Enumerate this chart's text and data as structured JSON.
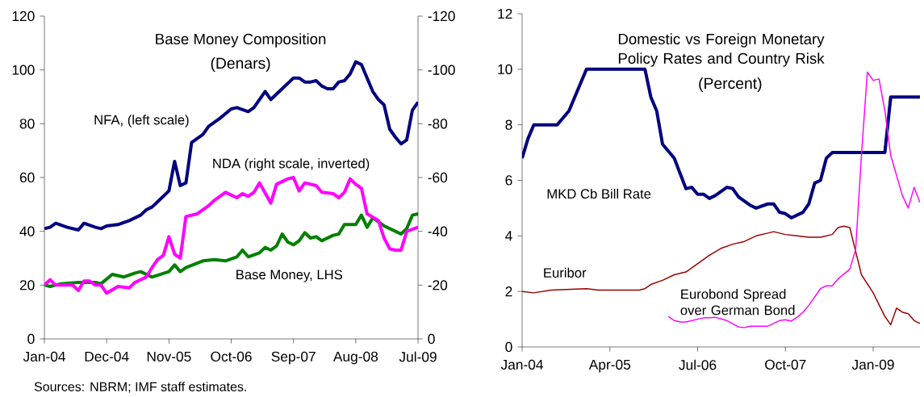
{
  "chart_data": [
    {
      "type": "line",
      "title": "Base Money Composition",
      "subtitle": "(Denars)",
      "xlim": [
        "2004-01",
        "2009-07"
      ],
      "xticks": [
        {
          "value": "2004-01",
          "label": "Jan-04"
        },
        {
          "value": "2004-12",
          "label": "Dec-04"
        },
        {
          "value": "2005-11",
          "label": "Nov-05"
        },
        {
          "value": "2006-10",
          "label": "Oct-06"
        },
        {
          "value": "2007-09",
          "label": "Sep-07"
        },
        {
          "value": "2008-08",
          "label": "Aug-08"
        },
        {
          "value": "2009-07",
          "label": "Jul-09"
        }
      ],
      "ylim": [
        0,
        120
      ],
      "yticks": [
        0,
        20,
        40,
        60,
        80,
        100,
        120
      ],
      "y2lim": [
        0,
        -120
      ],
      "y2ticks": [
        0,
        -20,
        -40,
        -60,
        -80,
        -100,
        -120
      ],
      "series": [
        {
          "name": "NFA, (left scale)",
          "color": "#000080",
          "x": [
            "2004-01",
            "2004-02",
            "2004-03",
            "2004-05",
            "2004-07",
            "2004-08",
            "2004-10",
            "2004-11",
            "2004-12",
            "2005-02",
            "2005-04",
            "2005-06",
            "2005-07",
            "2005-08",
            "2005-09",
            "2005-11",
            "2005-12",
            "2006-01",
            "2006-02",
            "2006-03",
            "2006-05",
            "2006-06",
            "2006-08",
            "2006-10",
            "2006-11",
            "2007-01",
            "2007-02",
            "2007-03",
            "2007-04",
            "2007-05",
            "2007-07",
            "2007-09",
            "2007-10",
            "2007-11",
            "2007-12",
            "2008-01",
            "2008-02",
            "2008-03",
            "2008-04",
            "2008-05",
            "2008-06",
            "2008-07",
            "2008-08",
            "2008-09",
            "2008-10",
            "2008-11",
            "2008-12",
            "2009-01",
            "2009-02",
            "2009-03",
            "2009-04",
            "2009-05",
            "2009-06",
            "2009-07"
          ],
          "values": [
            41,
            41.5,
            43,
            41.5,
            40.5,
            43,
            41.5,
            41,
            42,
            42.5,
            44,
            46,
            48,
            49,
            51,
            55,
            66,
            57,
            58,
            73,
            76,
            79,
            82,
            85.5,
            86,
            84.5,
            86,
            89,
            92,
            89,
            93,
            97,
            97,
            95.5,
            95.5,
            96,
            94,
            93,
            93,
            95.5,
            96,
            98.5,
            103,
            102,
            97,
            92,
            89,
            87,
            78,
            75,
            72.5,
            74,
            85,
            88
          ]
        },
        {
          "name": "Base Money, LHS",
          "color": "#008000",
          "x": [
            "2004-01",
            "2004-02",
            "2004-04",
            "2004-07",
            "2004-10",
            "2004-11",
            "2005-01",
            "2005-03",
            "2005-05",
            "2005-06",
            "2005-08",
            "2005-11",
            "2005-12",
            "2006-01",
            "2006-02",
            "2006-05",
            "2006-07",
            "2006-09",
            "2006-11",
            "2006-12",
            "2007-01",
            "2007-03",
            "2007-04",
            "2007-05",
            "2007-06",
            "2007-07",
            "2007-08",
            "2007-09",
            "2007-10",
            "2007-11",
            "2007-12",
            "2008-01",
            "2008-02",
            "2008-04",
            "2008-05",
            "2008-06",
            "2008-08",
            "2008-09",
            "2008-10",
            "2008-11",
            "2009-01",
            "2009-03",
            "2009-04",
            "2009-05",
            "2009-06",
            "2009-07"
          ],
          "values": [
            20,
            19.5,
            20.5,
            21,
            21,
            20.5,
            24,
            23,
            24.5,
            25,
            23,
            25,
            27.5,
            25,
            26.5,
            29,
            29.5,
            29,
            30.5,
            33,
            30.5,
            32,
            34,
            33,
            34.5,
            39,
            36,
            35,
            36.5,
            39.5,
            37.5,
            38,
            36.5,
            38.5,
            39,
            42.5,
            42.5,
            46,
            41.5,
            45,
            42,
            40,
            39,
            41,
            46,
            46.5
          ]
        },
        {
          "name": "NDA (right scale, inverted)",
          "color": "#ff00ff",
          "axis": "y2",
          "x": [
            "2004-01",
            "2004-02",
            "2004-03",
            "2004-06",
            "2004-07",
            "2004-08",
            "2004-09",
            "2004-10",
            "2004-11",
            "2004-12",
            "2005-02",
            "2005-04",
            "2005-05",
            "2005-07",
            "2005-08",
            "2005-09",
            "2005-10",
            "2005-11",
            "2005-12",
            "2006-01",
            "2006-02",
            "2006-04",
            "2006-06",
            "2006-07",
            "2006-09",
            "2006-11",
            "2006-12",
            "2007-01",
            "2007-02",
            "2007-03",
            "2007-05",
            "2007-06",
            "2007-08",
            "2007-09",
            "2007-10",
            "2007-11",
            "2008-01",
            "2008-02",
            "2008-04",
            "2008-05",
            "2008-06",
            "2008-07",
            "2008-08",
            "2008-09",
            "2008-10",
            "2008-12",
            "2009-01",
            "2009-02",
            "2009-03",
            "2009-04",
            "2009-05",
            "2009-07"
          ],
          "values": [
            -20,
            -22,
            -20,
            -20,
            -18,
            -21.5,
            -21.5,
            -20,
            -20,
            -17,
            -19.5,
            -19,
            -21,
            -23,
            -26.5,
            -29.5,
            -31,
            -38,
            -31.5,
            -30,
            -45.5,
            -46.5,
            -49.5,
            -51.5,
            -54.5,
            -52.5,
            -54,
            -53,
            -54.5,
            -58,
            -50.5,
            -57.5,
            -59.5,
            -60,
            -55,
            -58,
            -57,
            -54.5,
            -54,
            -52.5,
            -54.5,
            -59.5,
            -57.5,
            -56,
            -46.5,
            -44,
            -37.5,
            -33.5,
            -33,
            -33,
            -40,
            -41.5
          ]
        }
      ],
      "annotations": [
        "Sources: NBRM; IMF staff estimates."
      ]
    },
    {
      "type": "line",
      "title": "Domestic vs Foreign Monetary Policy Rates and Country Risk",
      "subtitle": "(Percent)",
      "xlim": [
        "2004-01",
        "2009-09"
      ],
      "xticks": [
        {
          "value": "2004-01",
          "label": "Jan-04"
        },
        {
          "value": "2005-04",
          "label": "Apr-05"
        },
        {
          "value": "2006-07",
          "label": "Jul-06"
        },
        {
          "value": "2007-10",
          "label": "Oct-07"
        },
        {
          "value": "2009-01",
          "label": "Jan-09"
        }
      ],
      "ylim": [
        0,
        12
      ],
      "yticks": [
        0,
        2,
        4,
        6,
        8,
        10,
        12
      ],
      "series": [
        {
          "name": "MKD Cb Bill Rate",
          "color": "#000080",
          "x": [
            "2004-01",
            "2004-02",
            "2004-03",
            "2004-07",
            "2004-09",
            "2004-10",
            "2004-11",
            "2004-12",
            "2005-10",
            "2005-11",
            "2005-12",
            "2006-01",
            "2006-03",
            "2006-05",
            "2006-06",
            "2006-07",
            "2006-08",
            "2006-09",
            "2006-10",
            "2006-12",
            "2007-01",
            "2007-02",
            "2007-04",
            "2007-05",
            "2007-07",
            "2007-08",
            "2007-09",
            "2007-10",
            "2007-11",
            "2008-01",
            "2008-02",
            "2008-03",
            "2008-04",
            "2008-05",
            "2008-06",
            "2009-03",
            "2009-04",
            "2009-09"
          ],
          "values": [
            6.8,
            7.5,
            8,
            8,
            8.5,
            9,
            9.5,
            10,
            10,
            9,
            8.5,
            7.3,
            6.8,
            5.7,
            5.75,
            5.5,
            5.5,
            5.35,
            5.45,
            5.75,
            5.7,
            5.4,
            5.1,
            5,
            5.15,
            5.15,
            4.85,
            4.8,
            4.65,
            4.85,
            5.15,
            5.9,
            6,
            6.8,
            7,
            7,
            9,
            9
          ]
        },
        {
          "name": "Euribor",
          "color": "#990000",
          "x": [
            "2004-01",
            "2004-03",
            "2004-06",
            "2004-12",
            "2005-02",
            "2005-09",
            "2005-10",
            "2005-11",
            "2006-01",
            "2006-03",
            "2006-05",
            "2006-07",
            "2006-09",
            "2006-11",
            "2007-01",
            "2007-03",
            "2007-05",
            "2007-07",
            "2007-08",
            "2007-10",
            "2007-12",
            "2008-02",
            "2008-04",
            "2008-06",
            "2008-07",
            "2008-08",
            "2008-09",
            "2008-11",
            "2009-01",
            "2009-03",
            "2009-04",
            "2009-05",
            "2009-06",
            "2009-07",
            "2009-08",
            "2009-09"
          ],
          "values": [
            2,
            1.95,
            2.05,
            2.1,
            2.05,
            2.05,
            2.1,
            2.25,
            2.4,
            2.6,
            2.7,
            3,
            3.3,
            3.55,
            3.7,
            3.8,
            4,
            4.1,
            4.15,
            4.05,
            4,
            3.95,
            3.95,
            4.05,
            4.3,
            4.35,
            4.3,
            2.6,
            1.95,
            1.1,
            0.8,
            1.4,
            1.25,
            1.2,
            0.95,
            0.85
          ]
        },
        {
          "name": "Eurobond Spread over German Bond",
          "color": "#ff00ff",
          "x": [
            "2006-02",
            "2006-03",
            "2006-04",
            "2006-05",
            "2006-06",
            "2006-08",
            "2006-09",
            "2006-10",
            "2006-12",
            "2007-02",
            "2007-03",
            "2007-04",
            "2007-07",
            "2007-09",
            "2007-10",
            "2007-11",
            "2007-12",
            "2008-01",
            "2008-02",
            "2008-04",
            "2008-05",
            "2008-06",
            "2008-07",
            "2008-09",
            "2008-10",
            "2008-11",
            "2008-12",
            "2009-01",
            "2009-02",
            "2009-03",
            "2009-04",
            "2009-06",
            "2009-07",
            "2009-08",
            "2009-09"
          ],
          "values": [
            1.1,
            0.95,
            0.9,
            0.9,
            0.95,
            1.05,
            1.05,
            1.07,
            0.95,
            0.72,
            0.7,
            0.75,
            0.75,
            0.95,
            0.98,
            0.93,
            1.07,
            1.25,
            1.5,
            2.1,
            2.2,
            2.2,
            2.45,
            2.8,
            3.5,
            6.9,
            9.9,
            9.6,
            9.65,
            8.5,
            6.9,
            5.45,
            5.0,
            5.75,
            5.2
          ]
        }
      ]
    }
  ]
}
